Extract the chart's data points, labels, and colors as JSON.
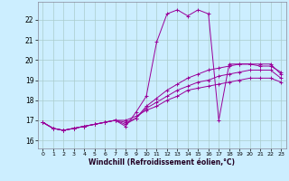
{
  "xlabel": "Windchill (Refroidissement éolien,°C)",
  "background_color": "#cceeff",
  "line_color": "#990099",
  "grid_color": "#aacccc",
  "x_ticks": [
    0,
    1,
    2,
    3,
    4,
    5,
    6,
    7,
    8,
    9,
    10,
    11,
    12,
    13,
    14,
    15,
    16,
    17,
    18,
    19,
    20,
    21,
    22,
    23
  ],
  "y_ticks": [
    16,
    17,
    18,
    19,
    20,
    21,
    22
  ],
  "xlim": [
    -0.5,
    23.5
  ],
  "ylim": [
    15.6,
    22.9
  ],
  "series": [
    [
      16.9,
      16.6,
      16.5,
      16.6,
      16.7,
      16.8,
      16.9,
      17.0,
      16.7,
      17.4,
      18.2,
      20.9,
      22.3,
      22.5,
      22.2,
      22.5,
      22.3,
      17.0,
      19.8,
      19.8,
      19.8,
      19.7,
      19.7,
      19.4
    ],
    [
      16.9,
      16.6,
      16.5,
      16.6,
      16.7,
      16.8,
      16.9,
      17.0,
      16.8,
      17.1,
      17.7,
      18.1,
      18.5,
      18.8,
      19.1,
      19.3,
      19.5,
      19.6,
      19.7,
      19.8,
      19.8,
      19.8,
      19.8,
      19.3
    ],
    [
      16.9,
      16.6,
      16.5,
      16.6,
      16.7,
      16.8,
      16.9,
      17.0,
      16.9,
      17.1,
      17.6,
      17.9,
      18.2,
      18.5,
      18.7,
      18.9,
      19.0,
      19.2,
      19.3,
      19.4,
      19.5,
      19.5,
      19.5,
      19.1
    ],
    [
      16.9,
      16.6,
      16.5,
      16.6,
      16.7,
      16.8,
      16.9,
      17.0,
      17.0,
      17.2,
      17.5,
      17.7,
      18.0,
      18.2,
      18.5,
      18.6,
      18.7,
      18.8,
      18.9,
      19.0,
      19.1,
      19.1,
      19.1,
      18.9
    ]
  ]
}
